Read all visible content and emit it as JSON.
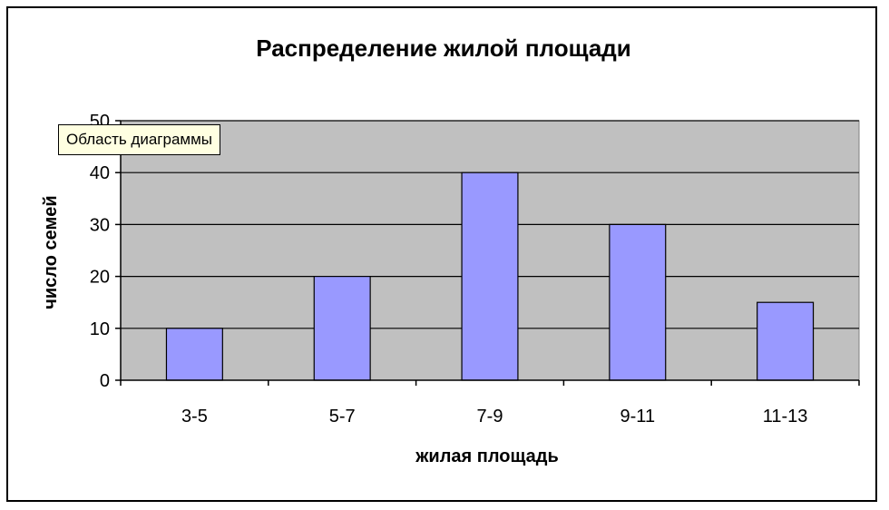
{
  "chart_data": {
    "type": "bar",
    "title": "Распределение жилой площади",
    "xlabel": "жилая площадь",
    "ylabel": "число семей",
    "categories": [
      "3-5",
      "5-7",
      "7-9",
      "9-11",
      "11-13"
    ],
    "values": [
      10,
      20,
      40,
      30,
      15
    ],
    "ylim": [
      0,
      50
    ],
    "yticks": [
      0,
      10,
      20,
      30,
      40,
      50
    ],
    "grid": true,
    "legend": "none",
    "colors": {
      "plot_background": "#c0c0c0",
      "bar_fill": "#9999ff",
      "bar_stroke": "#000000",
      "gridline": "#000000"
    }
  },
  "tooltip": {
    "text": "Область диаграммы"
  }
}
